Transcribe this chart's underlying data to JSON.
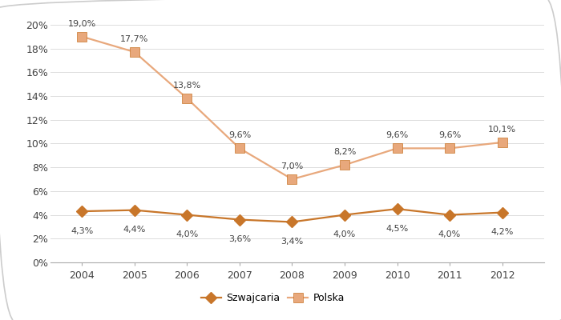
{
  "years": [
    2004,
    2005,
    2006,
    2007,
    2008,
    2009,
    2010,
    2011,
    2012
  ],
  "szwajcaria": [
    4.3,
    4.4,
    4.0,
    3.6,
    3.4,
    4.0,
    4.5,
    4.0,
    4.2
  ],
  "polska": [
    19.0,
    17.7,
    13.8,
    9.6,
    7.0,
    8.2,
    9.6,
    9.6,
    10.1
  ],
  "szwajcaria_labels": [
    "4,3%",
    "4,4%",
    "4,0%",
    "3,6%",
    "3,4%",
    "4,0%",
    "4,5%",
    "4,0%",
    "4,2%"
  ],
  "polska_labels": [
    "19,0%",
    "17,7%",
    "13,8%",
    "9,6%",
    "7,0%",
    "8,2%",
    "9,6%",
    "9,6%",
    "10,1%"
  ],
  "line_color_szwajcaria": "#C8762A",
  "line_color_polska": "#E8A87C",
  "ylim": [
    0,
    21
  ],
  "yticks": [
    0,
    2,
    4,
    6,
    8,
    10,
    12,
    14,
    16,
    18,
    20
  ],
  "ytick_labels": [
    "0%",
    "2%",
    "4%",
    "6%",
    "8%",
    "10%",
    "12%",
    "14%",
    "16%",
    "18%",
    "20%"
  ],
  "legend_szwajcaria": "Szwajcaria",
  "legend_polska": "Polska",
  "background_color": "#FFFFFF",
  "grid_color": "#DDDDDD",
  "label_fontsize": 8,
  "axis_fontsize": 9,
  "legend_fontsize": 9,
  "border_color": "#CCCCCC",
  "xlim_left": 2003.4,
  "xlim_right": 2012.8
}
